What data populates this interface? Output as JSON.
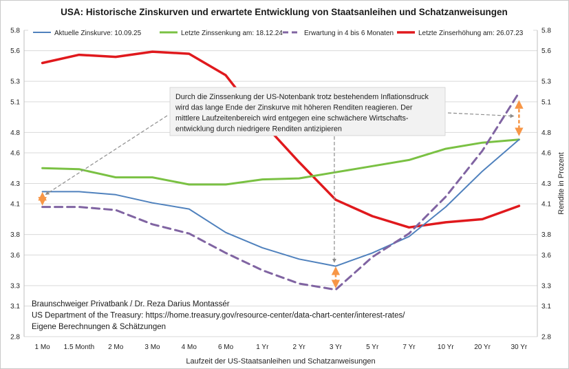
{
  "chart_data": {
    "type": "line",
    "title": "USA: Historische Zinskurven und erwartete Entwicklung von Staatsanleihen und Schatzanweisungen",
    "xlabel": "Laufzeit der US-Staatsanleihen und Schatzanweisungen",
    "ylabel": "Rendite in Prozent",
    "categories": [
      "1 Mo",
      "1.5 Month",
      "2 Mo",
      "3 Mo",
      "4 Mo",
      "6 Mo",
      "1 Yr",
      "2 Yr",
      "3 Yr",
      "5 Yr",
      "7 Yr",
      "10 Yr",
      "20 Yr",
      "30 Yr"
    ],
    "y_ticks": [
      "2.8",
      "3.1",
      "3.3",
      "3.6",
      "3.8",
      "4.1",
      "4.3",
      "4.6",
      "4.8",
      "5.1",
      "5.3",
      "5.6",
      "5.8"
    ],
    "ylim": [
      2.8,
      5.8
    ],
    "grid": true,
    "legend_position": "top",
    "series": [
      {
        "name": "Aktuelle Zinskurve: 10.09.25",
        "color": "#4f81bd",
        "style": "solid",
        "values": [
          4.22,
          4.22,
          4.19,
          4.11,
          4.05,
          3.82,
          3.67,
          3.56,
          3.49,
          3.62,
          3.78,
          4.07,
          4.42,
          4.73
        ]
      },
      {
        "name": "Letzte Zinssenkung am: 18.12.24",
        "color": "#7ac143",
        "style": "solid",
        "values": [
          4.45,
          4.44,
          4.36,
          4.36,
          4.29,
          4.29,
          4.34,
          4.35,
          4.41,
          4.47,
          4.53,
          4.64,
          4.7,
          4.73
        ]
      },
      {
        "name": "Erwartung in 4 bis 6 Monaten",
        "color": "#8064a2",
        "style": "dashed",
        "values": [
          4.07,
          4.07,
          4.04,
          3.9,
          3.81,
          3.62,
          3.45,
          3.32,
          3.26,
          3.58,
          3.81,
          4.17,
          4.62,
          5.19
        ]
      },
      {
        "name": "Letzte Zinserhöhung am: 26.07.23",
        "color": "#e0191d",
        "style": "solid",
        "values": [
          5.48,
          5.56,
          5.54,
          5.59,
          5.57,
          5.36,
          4.9,
          4.51,
          4.14,
          3.98,
          3.87,
          3.92,
          3.95,
          4.08
        ]
      }
    ],
    "annotation": {
      "lines": [
        "Durch die Zinssenkung der US-Notenbank trotz bestehendem Inflationsdruck",
        "wird das lange Ende der Zinskurve mit höheren Renditen reagieren. Der",
        "mittlere  Laufzeitenbereich wird entgegen eine schwächere Wirtschafts-",
        "entwicklung durch niedrigere Renditen antizipieren"
      ]
    },
    "source_lines": [
      "Braunschweiger Privatbank / Dr. Reza Darius Montassér",
      "US Department of the Treasury: https://home.treasury.gov/resource-center/data-chart-center/interest-rates/",
      "Eigene Berechnungen & Schätzungen"
    ],
    "colors": {
      "arrow_orange": "#f79646",
      "arrow_gray": "#8c8c8c",
      "grid": "#d9d9d9",
      "annotation_bg": "#f2f2f2"
    }
  }
}
